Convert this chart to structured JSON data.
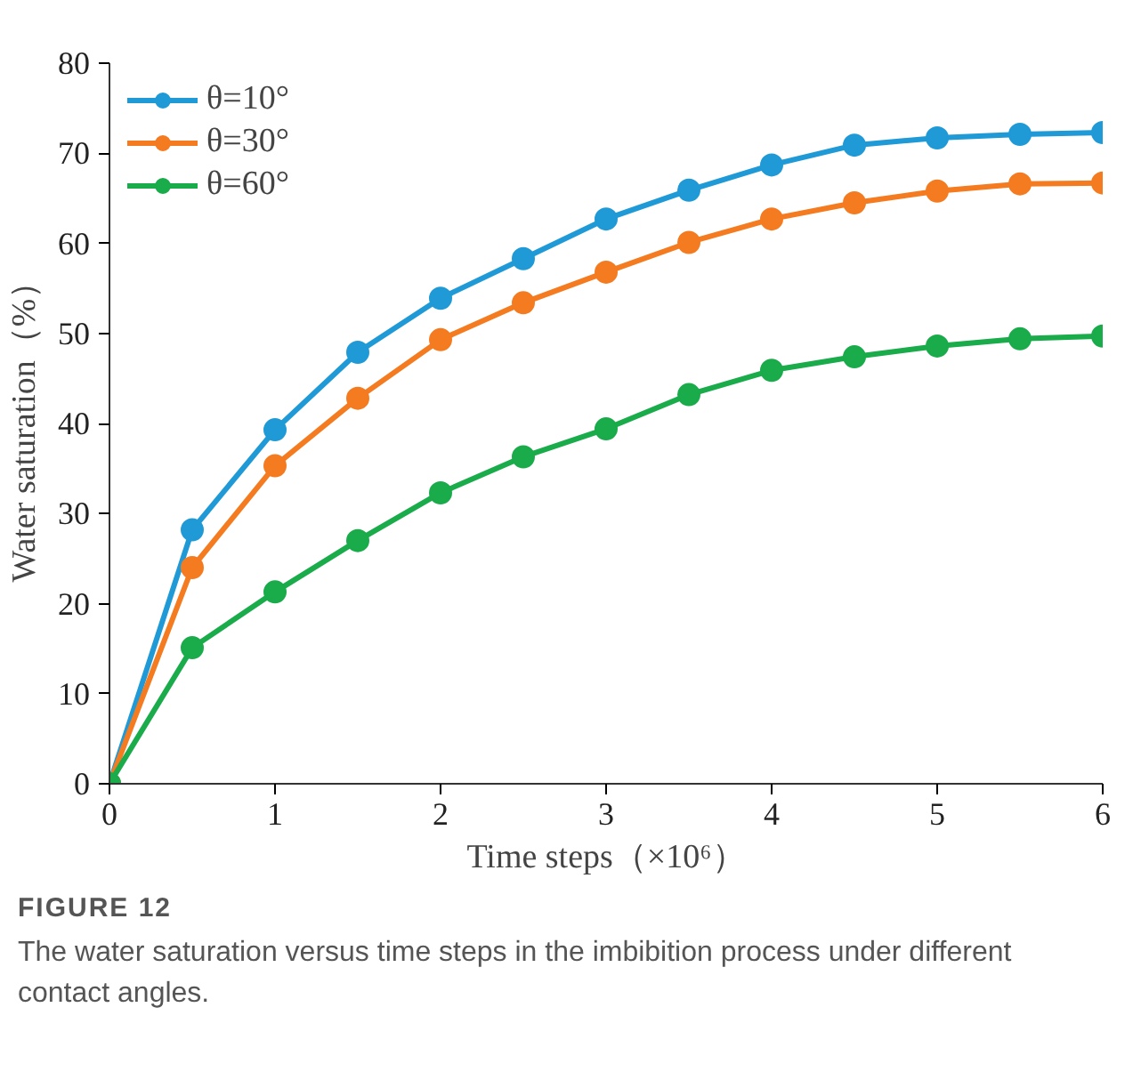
{
  "chart_data": {
    "type": "line",
    "title": "FIGURE 12",
    "subtitle": "The water saturation versus time steps in the imbibition process under different contact angles.",
    "xlabel": "Time steps（×10⁶）",
    "ylabel": "Water saturation（%）",
    "x": [
      0,
      0.5,
      1,
      1.5,
      2,
      2.5,
      3,
      3.5,
      4,
      4.5,
      5,
      5.5,
      6
    ],
    "series": [
      {
        "name": "θ=10°",
        "color": "#1f9ad6",
        "values": [
          0,
          28.2,
          39.3,
          47.9,
          53.9,
          58.3,
          62.7,
          65.9,
          68.7,
          70.9,
          71.7,
          72.1,
          72.3
        ]
      },
      {
        "name": "θ=30°",
        "color": "#f47b20",
        "values": [
          0,
          24,
          35.3,
          42.8,
          49.3,
          53.4,
          56.8,
          60.1,
          62.7,
          64.5,
          65.8,
          66.6,
          66.7
        ]
      },
      {
        "name": "θ=60°",
        "color": "#1aab4b",
        "values": [
          0,
          15.1,
          21.3,
          27,
          32.3,
          36.3,
          39.4,
          43.2,
          45.9,
          47.4,
          48.6,
          49.4,
          49.7
        ]
      }
    ],
    "xlim": [
      0,
      6
    ],
    "ylim": [
      0,
      80
    ],
    "xticks": [
      0,
      1,
      2,
      3,
      4,
      5,
      6
    ],
    "yticks": [
      0,
      10,
      20,
      30,
      40,
      50,
      60,
      70,
      80
    ],
    "grid": false,
    "legend": "top left",
    "marker": "circle",
    "line_style": "solid"
  }
}
